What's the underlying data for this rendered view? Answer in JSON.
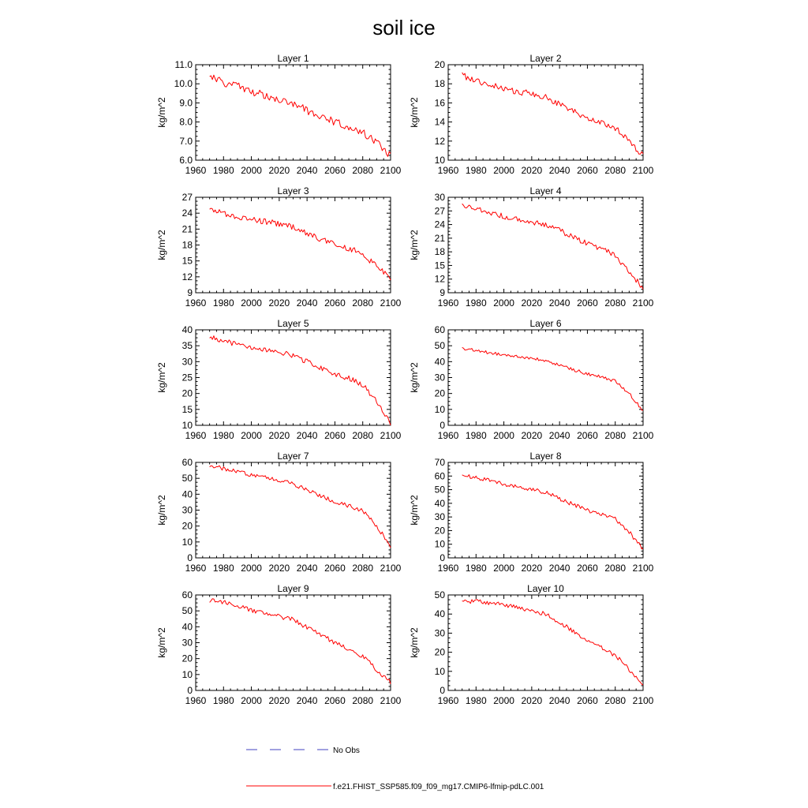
{
  "figure": {
    "title": "soil ice",
    "colors": {
      "model": "#ff0000",
      "obs": "#4040c0",
      "frame": "#000000"
    }
  },
  "legend": {
    "items": [
      {
        "label": "No Obs",
        "style": "dashed",
        "color": "#4040c0"
      },
      {
        "label": "f.e21.FHIST_SSP585.f09_f09_mg17.CMIP6-lfmip-pdLC.001",
        "style": "solid",
        "color": "#ff0000"
      }
    ],
    "placement": "bottom-center"
  },
  "chart_data": [
    {
      "type": "line",
      "title": "Layer 1",
      "ylabel": "kg/m^2",
      "xlim": [
        1960,
        2100
      ],
      "ylim": [
        6.0,
        11.0
      ],
      "xticks": [
        1960,
        1980,
        2000,
        2020,
        2040,
        2060,
        2080,
        2100
      ],
      "xtick_labels": [
        "1960",
        "1980",
        "2000",
        "2020",
        "2040",
        "2060",
        "2080",
        "2100"
      ],
      "yticks": [
        6.0,
        7.0,
        8.0,
        9.0,
        10.0,
        11.0
      ],
      "ytick_labels": [
        "6.0",
        "7.0",
        "8.0",
        "9.0",
        "10.0",
        "11.0"
      ],
      "series": [
        {
          "color": "#ff0000",
          "x": [
            1970,
            2100
          ],
          "control_points": [
            [
              1970,
              10.4
            ],
            [
              1980,
              10.05
            ],
            [
              1990,
              9.9
            ],
            [
              2000,
              9.6
            ],
            [
              2010,
              9.4
            ],
            [
              2020,
              9.2
            ],
            [
              2030,
              9.0
            ],
            [
              2040,
              8.6
            ],
            [
              2050,
              8.3
            ],
            [
              2060,
              8.0
            ],
            [
              2070,
              7.75
            ],
            [
              2080,
              7.45
            ],
            [
              2090,
              6.9
            ],
            [
              2100,
              6.2
            ]
          ],
          "noise": 0.2
        }
      ]
    },
    {
      "type": "line",
      "title": "Layer 2",
      "ylabel": "kg/m^2",
      "xlim": [
        1960,
        2100
      ],
      "ylim": [
        10,
        20
      ],
      "xticks": [
        1960,
        1980,
        2000,
        2020,
        2040,
        2060,
        2080,
        2100
      ],
      "xtick_labels": [
        "1960",
        "1980",
        "2000",
        "2020",
        "2040",
        "2060",
        "2080",
        "2100"
      ],
      "yticks": [
        10,
        12,
        14,
        16,
        18,
        20
      ],
      "ytick_labels": [
        "10",
        "12",
        "14",
        "16",
        "18",
        "20"
      ],
      "series": [
        {
          "color": "#ff0000",
          "x": [
            1970,
            2100
          ],
          "control_points": [
            [
              1970,
              18.9
            ],
            [
              1980,
              18.4
            ],
            [
              1990,
              17.9
            ],
            [
              2000,
              17.5
            ],
            [
              2010,
              17.2
            ],
            [
              2020,
              16.9
            ],
            [
              2030,
              16.6
            ],
            [
              2040,
              15.8
            ],
            [
              2050,
              15.1
            ],
            [
              2060,
              14.4
            ],
            [
              2070,
              13.9
            ],
            [
              2080,
              13.4
            ],
            [
              2090,
              12.0
            ],
            [
              2100,
              10.4
            ]
          ],
          "noise": 0.35
        }
      ]
    },
    {
      "type": "line",
      "title": "Layer 3",
      "ylabel": "kg/m^2",
      "xlim": [
        1960,
        2100
      ],
      "ylim": [
        9,
        27
      ],
      "xticks": [
        1960,
        1980,
        2000,
        2020,
        2040,
        2060,
        2080,
        2100
      ],
      "xtick_labels": [
        "1960",
        "1980",
        "2000",
        "2020",
        "2040",
        "2060",
        "2080",
        "2100"
      ],
      "yticks": [
        9,
        12,
        15,
        18,
        21,
        24,
        27
      ],
      "ytick_labels": [
        "9",
        "12",
        "15",
        "18",
        "21",
        "24",
        "27"
      ],
      "series": [
        {
          "color": "#ff0000",
          "x": [
            1970,
            2100
          ],
          "control_points": [
            [
              1970,
              24.9
            ],
            [
              1980,
              24.0
            ],
            [
              1990,
              23.4
            ],
            [
              2000,
              22.9
            ],
            [
              2010,
              22.4
            ],
            [
              2020,
              22.0
            ],
            [
              2030,
              21.4
            ],
            [
              2040,
              20.2
            ],
            [
              2050,
              19.1
            ],
            [
              2060,
              18.2
            ],
            [
              2070,
              17.4
            ],
            [
              2080,
              16.4
            ],
            [
              2090,
              13.9
            ],
            [
              2100,
              11.7
            ]
          ],
          "noise": 0.55
        }
      ]
    },
    {
      "type": "line",
      "title": "Layer 4",
      "ylabel": "kg/m^2",
      "xlim": [
        1960,
        2100
      ],
      "ylim": [
        9,
        30
      ],
      "xticks": [
        1960,
        1980,
        2000,
        2020,
        2040,
        2060,
        2080,
        2100
      ],
      "xtick_labels": [
        "1960",
        "1980",
        "2000",
        "2020",
        "2040",
        "2060",
        "2080",
        "2100"
      ],
      "yticks": [
        9,
        12,
        15,
        18,
        21,
        24,
        27,
        30
      ],
      "ytick_labels": [
        "9",
        "12",
        "15",
        "18",
        "21",
        "24",
        "27",
        "30"
      ],
      "series": [
        {
          "color": "#ff0000",
          "x": [
            1970,
            2100
          ],
          "control_points": [
            [
              1970,
              28.2
            ],
            [
              1980,
              27.4
            ],
            [
              1990,
              26.5
            ],
            [
              2000,
              25.8
            ],
            [
              2010,
              25.2
            ],
            [
              2020,
              24.6
            ],
            [
              2030,
              24.0
            ],
            [
              2040,
              22.7
            ],
            [
              2050,
              21.2
            ],
            [
              2060,
              19.8
            ],
            [
              2070,
              18.7
            ],
            [
              2080,
              17.2
            ],
            [
              2090,
              13.6
            ],
            [
              2100,
              10.0
            ]
          ],
          "noise": 0.6
        }
      ]
    },
    {
      "type": "line",
      "title": "Layer 5",
      "ylabel": "kg/m^2",
      "xlim": [
        1960,
        2100
      ],
      "ylim": [
        10,
        40
      ],
      "xticks": [
        1960,
        1980,
        2000,
        2020,
        2040,
        2060,
        2080,
        2100
      ],
      "xtick_labels": [
        "1960",
        "1980",
        "2000",
        "2020",
        "2040",
        "2060",
        "2080",
        "2100"
      ],
      "yticks": [
        10,
        15,
        20,
        25,
        30,
        35,
        40
      ],
      "ytick_labels": [
        "10",
        "15",
        "20",
        "25",
        "30",
        "35",
        "40"
      ],
      "series": [
        {
          "color": "#ff0000",
          "x": [
            1970,
            2100
          ],
          "control_points": [
            [
              1970,
              37.8
            ],
            [
              1980,
              36.5
            ],
            [
              1990,
              35.4
            ],
            [
              2000,
              34.5
            ],
            [
              2010,
              33.7
            ],
            [
              2020,
              33.0
            ],
            [
              2030,
              32.0
            ],
            [
              2040,
              30.0
            ],
            [
              2050,
              28.0
            ],
            [
              2060,
              26.0
            ],
            [
              2070,
              24.8
            ],
            [
              2080,
              22.8
            ],
            [
              2090,
              17.5
            ],
            [
              2100,
              10.5
            ]
          ],
          "noise": 0.8
        }
      ]
    },
    {
      "type": "line",
      "title": "Layer 6",
      "ylabel": "kg/m^2",
      "xlim": [
        1960,
        2100
      ],
      "ylim": [
        0,
        60
      ],
      "xticks": [
        1960,
        1980,
        2000,
        2020,
        2040,
        2060,
        2080,
        2100
      ],
      "xtick_labels": [
        "1960",
        "1980",
        "2000",
        "2020",
        "2040",
        "2060",
        "2080",
        "2100"
      ],
      "yticks": [
        0,
        10,
        20,
        30,
        40,
        50,
        60
      ],
      "ytick_labels": [
        "0",
        "10",
        "20",
        "30",
        "40",
        "50",
        "60"
      ],
      "series": [
        {
          "color": "#ff0000",
          "x": [
            1970,
            2100
          ],
          "control_points": [
            [
              1970,
              48.5
            ],
            [
              1980,
              47.0
            ],
            [
              1990,
              45.5
            ],
            [
              2000,
              44.3
            ],
            [
              2010,
              43.2
            ],
            [
              2020,
              42.0
            ],
            [
              2030,
              40.5
            ],
            [
              2040,
              37.8
            ],
            [
              2050,
              35.0
            ],
            [
              2060,
              32.3
            ],
            [
              2070,
              30.3
            ],
            [
              2080,
              27.8
            ],
            [
              2090,
              20.0
            ],
            [
              2100,
              9.0
            ]
          ],
          "noise": 1.0
        }
      ]
    },
    {
      "type": "line",
      "title": "Layer 7",
      "ylabel": "kg/m^2",
      "xlim": [
        1960,
        2100
      ],
      "ylim": [
        0,
        60
      ],
      "xticks": [
        1960,
        1980,
        2000,
        2020,
        2040,
        2060,
        2080,
        2100
      ],
      "xtick_labels": [
        "1960",
        "1980",
        "2000",
        "2020",
        "2040",
        "2060",
        "2080",
        "2100"
      ],
      "yticks": [
        0,
        10,
        20,
        30,
        40,
        50,
        60
      ],
      "ytick_labels": [
        "0",
        "10",
        "20",
        "30",
        "40",
        "50",
        "60"
      ],
      "series": [
        {
          "color": "#ff0000",
          "x": [
            1970,
            2100
          ],
          "control_points": [
            [
              1970,
              58.0
            ],
            [
              1980,
              56.2
            ],
            [
              1990,
              54.0
            ],
            [
              2000,
              52.3
            ],
            [
              2010,
              50.6
            ],
            [
              2020,
              49.0
            ],
            [
              2030,
              46.5
            ],
            [
              2040,
              42.5
            ],
            [
              2050,
              39.0
            ],
            [
              2060,
              35.5
            ],
            [
              2070,
              32.8
            ],
            [
              2080,
              29.5
            ],
            [
              2090,
              20.0
            ],
            [
              2100,
              7.5
            ]
          ],
          "noise": 1.3
        }
      ]
    },
    {
      "type": "line",
      "title": "Layer 8",
      "ylabel": "kg/m^2",
      "xlim": [
        1960,
        2100
      ],
      "ylim": [
        0,
        70
      ],
      "xticks": [
        1960,
        1980,
        2000,
        2020,
        2040,
        2060,
        2080,
        2100
      ],
      "xtick_labels": [
        "1960",
        "1980",
        "2000",
        "2020",
        "2040",
        "2060",
        "2080",
        "2100"
      ],
      "yticks": [
        0,
        10,
        20,
        30,
        40,
        50,
        60,
        70
      ],
      "ytick_labels": [
        "0",
        "10",
        "20",
        "30",
        "40",
        "50",
        "60",
        "70"
      ],
      "series": [
        {
          "color": "#ff0000",
          "x": [
            1970,
            2100
          ],
          "control_points": [
            [
              1970,
              60.5
            ],
            [
              1980,
              58.8
            ],
            [
              1990,
              56.5
            ],
            [
              2000,
              54.0
            ],
            [
              2010,
              52.0
            ],
            [
              2020,
              50.0
            ],
            [
              2030,
              48.0
            ],
            [
              2040,
              43.5
            ],
            [
              2050,
              39.0
            ],
            [
              2060,
              35.0
            ],
            [
              2070,
              32.0
            ],
            [
              2080,
              28.5
            ],
            [
              2090,
              19.0
            ],
            [
              2100,
              6.0
            ]
          ],
          "noise": 1.5
        }
      ]
    },
    {
      "type": "line",
      "title": "Layer 9",
      "ylabel": "kg/m^2",
      "xlim": [
        1960,
        2100
      ],
      "ylim": [
        0,
        60
      ],
      "xticks": [
        1960,
        1980,
        2000,
        2020,
        2040,
        2060,
        2080,
        2100
      ],
      "xtick_labels": [
        "1960",
        "1980",
        "2000",
        "2020",
        "2040",
        "2060",
        "2080",
        "2100"
      ],
      "yticks": [
        0,
        10,
        20,
        30,
        40,
        50,
        60
      ],
      "ytick_labels": [
        "0",
        "10",
        "20",
        "30",
        "40",
        "50",
        "60"
      ],
      "series": [
        {
          "color": "#ff0000",
          "x": [
            1970,
            2100
          ],
          "control_points": [
            [
              1970,
              56.5
            ],
            [
              1980,
              55.5
            ],
            [
              1990,
              53.0
            ],
            [
              2000,
              50.5
            ],
            [
              2010,
              48.3
            ],
            [
              2020,
              46.5
            ],
            [
              2030,
              44.5
            ],
            [
              2040,
              39.5
            ],
            [
              2050,
              35.0
            ],
            [
              2060,
              30.0
            ],
            [
              2070,
              26.0
            ],
            [
              2080,
              21.5
            ],
            [
              2090,
              13.0
            ],
            [
              2100,
              5.0
            ]
          ],
          "noise": 1.4
        }
      ]
    },
    {
      "type": "line",
      "title": "Layer 10",
      "ylabel": "kg/m^2",
      "xlim": [
        1960,
        2100
      ],
      "ylim": [
        0,
        50
      ],
      "xticks": [
        1960,
        1980,
        2000,
        2020,
        2040,
        2060,
        2080,
        2100
      ],
      "xtick_labels": [
        "1960",
        "1980",
        "2000",
        "2020",
        "2040",
        "2060",
        "2080",
        "2100"
      ],
      "yticks": [
        0,
        10,
        20,
        30,
        40,
        50
      ],
      "ytick_labels": [
        "0",
        "10",
        "20",
        "30",
        "40",
        "50"
      ],
      "series": [
        {
          "color": "#ff0000",
          "x": [
            1970,
            2100
          ],
          "control_points": [
            [
              1970,
              46.8
            ],
            [
              1980,
              46.5
            ],
            [
              1990,
              46.0
            ],
            [
              2000,
              45.0
            ],
            [
              2010,
              43.5
            ],
            [
              2020,
              41.5
            ],
            [
              2030,
              40.0
            ],
            [
              2040,
              35.5
            ],
            [
              2050,
              31.0
            ],
            [
              2060,
              26.0
            ],
            [
              2070,
              22.5
            ],
            [
              2080,
              18.5
            ],
            [
              2090,
              11.0
            ],
            [
              2100,
              3.5
            ]
          ],
          "noise": 1.2
        }
      ]
    }
  ]
}
